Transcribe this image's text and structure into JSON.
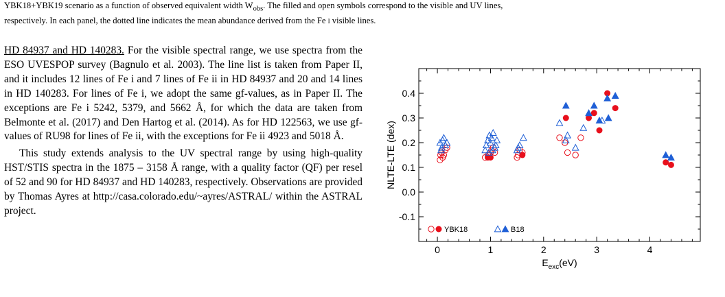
{
  "caption": {
    "line1_pre": "YBK18+YBK19 scenario as a function of observed equivalent width W",
    "line1_sub": "obs",
    "line1_post": ". The filled and open symbols correspond to the visible and UV lines,",
    "line2_pre": "respectively. In each panel, the dotted line indicates the mean abundance derived from the Fe",
    "line2_roman": "i",
    "line2_post": " visible lines."
  },
  "body": {
    "heading": "HD 84937 and HD 140283.",
    "p1": "For the visible spectral range, we use spectra from the ESO UVESPOP survey (Bagnulo et al. 2003). The line list is taken from Paper II, and it includes 12 lines of Fe i and 7 lines of Fe ii in HD 84937 and 20 and 14 lines in HD 140283. For lines of Fe i, we adopt the same gf-values, as in Paper II. The exceptions are Fe i 5242, 5379, and 5662 Å, for which the data are taken from Belmonte et al. (2017) and Den Hartog et al. (2014). As for HD 122563, we use gf-values of RU98 for lines of Fe ii, with the exceptions for Fe ii 4923 and 5018 Å.",
    "p2": "This study extends analysis to the UV spectral range by using high-quality HST/STIS spectra in the 1875 – 3158 Å range, with a quality factor (QF) per resel of 52 and 90 for HD 84937 and HD 140283, respectively. Observations are provided by Thomas Ayres at http://casa.colorado.edu/~ayres/ASTRAL/ within the ASTRAL project."
  },
  "chart_data": {
    "type": "scatter",
    "title": "",
    "xlabel_main": "E",
    "xlabel_sub": "exc",
    "xlabel_unit": "(eV)",
    "ylabel": "NLTE-LTE (dex)",
    "xlim": [
      -0.35,
      4.95
    ],
    "ylim": [
      -0.2,
      0.5
    ],
    "xticks": [
      "0",
      "1",
      "2",
      "3",
      "4"
    ],
    "yticks": [
      "-0.1",
      "0.0",
      "0.1",
      "0.2",
      "0.3",
      "0.4"
    ],
    "legend_position": "bottom-left",
    "colors": {
      "ybk18": "#e8101c",
      "b18": "#1f5fd6"
    },
    "series": [
      {
        "name": "YBK18",
        "symbol": "circle-open",
        "color": "#e8101c",
        "points": [
          [
            0.05,
            0.13
          ],
          [
            0.08,
            0.16
          ],
          [
            0.1,
            0.14
          ],
          [
            0.12,
            0.15
          ],
          [
            0.15,
            0.17
          ],
          [
            0.18,
            0.18
          ],
          [
            0.06,
            0.15
          ],
          [
            0.9,
            0.14
          ],
          [
            0.95,
            0.15
          ],
          [
            1.0,
            0.16
          ],
          [
            1.02,
            0.17
          ],
          [
            1.05,
            0.18
          ],
          [
            1.08,
            0.16
          ],
          [
            0.98,
            0.15
          ],
          [
            1.5,
            0.14
          ],
          [
            1.52,
            0.15
          ],
          [
            1.55,
            0.17
          ],
          [
            1.6,
            0.16
          ],
          [
            2.3,
            0.22
          ],
          [
            2.4,
            0.2
          ],
          [
            2.45,
            0.16
          ],
          [
            2.6,
            0.15
          ],
          [
            2.7,
            0.22
          ]
        ]
      },
      {
        "name": "YBK18",
        "symbol": "circle-filled",
        "color": "#e8101c",
        "points": [
          [
            0.95,
            0.14
          ],
          [
            1.0,
            0.14
          ],
          [
            1.6,
            0.15
          ],
          [
            2.42,
            0.3
          ],
          [
            2.85,
            0.3
          ],
          [
            2.95,
            0.32
          ],
          [
            3.05,
            0.25
          ],
          [
            3.2,
            0.4
          ],
          [
            3.35,
            0.34
          ],
          [
            4.3,
            0.12
          ],
          [
            4.4,
            0.11
          ]
        ]
      },
      {
        "name": "B18",
        "symbol": "triangle-open",
        "color": "#1f5fd6",
        "points": [
          [
            0.05,
            0.2
          ],
          [
            0.08,
            0.18
          ],
          [
            0.1,
            0.21
          ],
          [
            0.12,
            0.22
          ],
          [
            0.15,
            0.19
          ],
          [
            0.18,
            0.2
          ],
          [
            0.07,
            0.17
          ],
          [
            0.9,
            0.17
          ],
          [
            0.92,
            0.19
          ],
          [
            0.95,
            0.21
          ],
          [
            0.98,
            0.23
          ],
          [
            1.0,
            0.2
          ],
          [
            1.02,
            0.22
          ],
          [
            1.05,
            0.24
          ],
          [
            1.08,
            0.18
          ],
          [
            1.1,
            0.19
          ],
          [
            1.12,
            0.21
          ],
          [
            0.97,
            0.16
          ],
          [
            1.04,
            0.17
          ],
          [
            1.5,
            0.17
          ],
          [
            1.52,
            0.18
          ],
          [
            1.55,
            0.19
          ],
          [
            1.62,
            0.22
          ],
          [
            2.3,
            0.28
          ],
          [
            2.42,
            0.21
          ],
          [
            2.45,
            0.23
          ],
          [
            2.6,
            0.18
          ],
          [
            2.75,
            0.26
          ],
          [
            3.1,
            0.29
          ]
        ]
      },
      {
        "name": "B18",
        "symbol": "triangle-filled",
        "color": "#1f5fd6",
        "points": [
          [
            2.42,
            0.35
          ],
          [
            2.85,
            0.32
          ],
          [
            2.95,
            0.35
          ],
          [
            3.05,
            0.29
          ],
          [
            3.2,
            0.38
          ],
          [
            3.22,
            0.3
          ],
          [
            3.35,
            0.39
          ],
          [
            4.3,
            0.15
          ],
          [
            4.4,
            0.14
          ]
        ]
      }
    ],
    "legend": [
      {
        "label": "YBK18",
        "symbols": [
          "circle-open",
          "circle-filled"
        ],
        "color": "#e8101c"
      },
      {
        "label": "B18",
        "symbols": [
          "triangle-open",
          "triangle-filled"
        ],
        "color": "#1f5fd6"
      }
    ]
  }
}
